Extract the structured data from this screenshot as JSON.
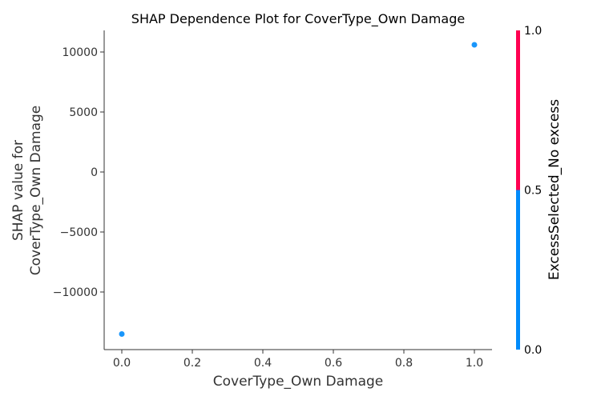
{
  "chart_data": {
    "type": "scatter",
    "title": "SHAP Dependence Plot for CoverType_Own Damage",
    "xlabel": "CoverType_Own Damage",
    "ylabel_lines": [
      "SHAP value for",
      "CoverType_Own Damage"
    ],
    "xlim": [
      -0.05,
      1.05
    ],
    "ylim": [
      -14800,
      11800
    ],
    "x_ticks": [
      0.0,
      0.2,
      0.4,
      0.6,
      0.8,
      1.0
    ],
    "x_tick_labels": [
      "0.0",
      "0.2",
      "0.4",
      "0.6",
      "0.8",
      "1.0"
    ],
    "y_ticks": [
      -10000,
      -5000,
      0,
      5000,
      10000
    ],
    "y_tick_labels": [
      "−10000",
      "−5000",
      "0",
      "5000",
      "10000"
    ],
    "points": [
      {
        "x": 0.0,
        "y": -13500,
        "color_value": 0.0
      },
      {
        "x": 1.0,
        "y": 10600,
        "color_value": 0.0
      }
    ],
    "colorbar": {
      "label": "ExcessSelected_No excess",
      "range": [
        0.0,
        1.0
      ],
      "ticks": [
        0.0,
        0.5,
        1.0
      ],
      "tick_labels": [
        "0.0",
        "0.5",
        "1.0"
      ],
      "low_color": "#008bfb",
      "high_color": "#ff0051"
    },
    "grid": false
  }
}
